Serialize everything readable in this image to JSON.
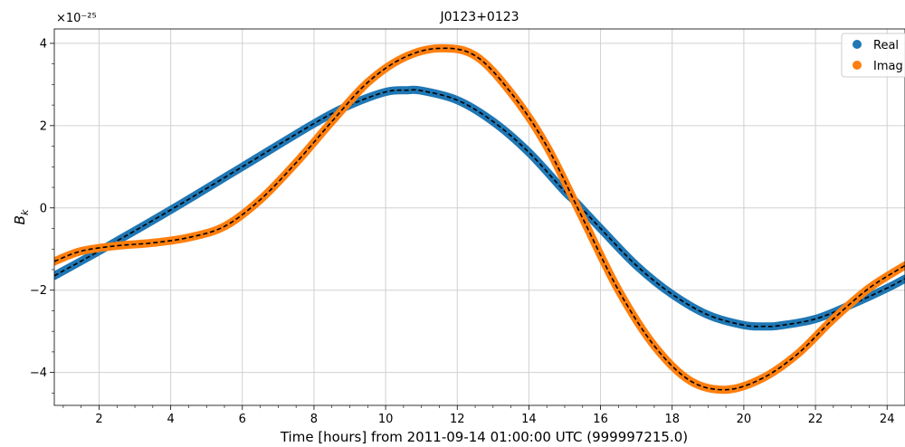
{
  "chart_data": {
    "type": "line",
    "title": "J0123+0123",
    "xlabel": "Time [hours] from 2011-09-14 01:00:00 UTC (999997215.0)",
    "ylabel": "B_k",
    "y_multiplier": "×10⁻²⁵",
    "xlim": [
      0.75,
      24.5
    ],
    "ylim": [
      -4.8,
      4.35
    ],
    "xticks": [
      2,
      4,
      6,
      8,
      10,
      12,
      14,
      16,
      18,
      20,
      22,
      24
    ],
    "yticks": [
      -4,
      -2,
      0,
      2,
      4
    ],
    "grid": true,
    "legend_position": "top-right",
    "series": [
      {
        "name": "Real",
        "color": "#1f77b4",
        "x": [
          0.75,
          2,
          4,
          6,
          8,
          9,
          10,
          10.6,
          11,
          12,
          13,
          14,
          15,
          15.3,
          16,
          17,
          18,
          19,
          20,
          20.6,
          21,
          22,
          23,
          24,
          24.5
        ],
        "y": [
          -1.65,
          -1.05,
          -0.05,
          1.0,
          2.05,
          2.5,
          2.82,
          2.86,
          2.85,
          2.62,
          2.1,
          1.35,
          0.4,
          0.15,
          -0.5,
          -1.4,
          -2.1,
          -2.6,
          -2.85,
          -2.88,
          -2.86,
          -2.7,
          -2.35,
          -1.95,
          -1.72
        ]
      },
      {
        "name": "Imag",
        "color": "#ff7f0e",
        "x": [
          0.75,
          1.5,
          2.5,
          3.5,
          4.5,
          5.5,
          6.5,
          7.5,
          8.5,
          9.5,
          10.5,
          11.5,
          12.5,
          13.5,
          14.5,
          15.5,
          16.5,
          17.5,
          18.5,
          19.5,
          20.5,
          21.5,
          22.5,
          23.5,
          24.5
        ],
        "y": [
          -1.3,
          -1.05,
          -0.92,
          -0.85,
          -0.72,
          -0.45,
          0.2,
          1.1,
          2.1,
          3.05,
          3.65,
          3.88,
          3.7,
          2.8,
          1.5,
          -0.25,
          -2.0,
          -3.35,
          -4.2,
          -4.42,
          -4.15,
          -3.55,
          -2.7,
          -1.95,
          -1.4
        ]
      }
    ]
  }
}
